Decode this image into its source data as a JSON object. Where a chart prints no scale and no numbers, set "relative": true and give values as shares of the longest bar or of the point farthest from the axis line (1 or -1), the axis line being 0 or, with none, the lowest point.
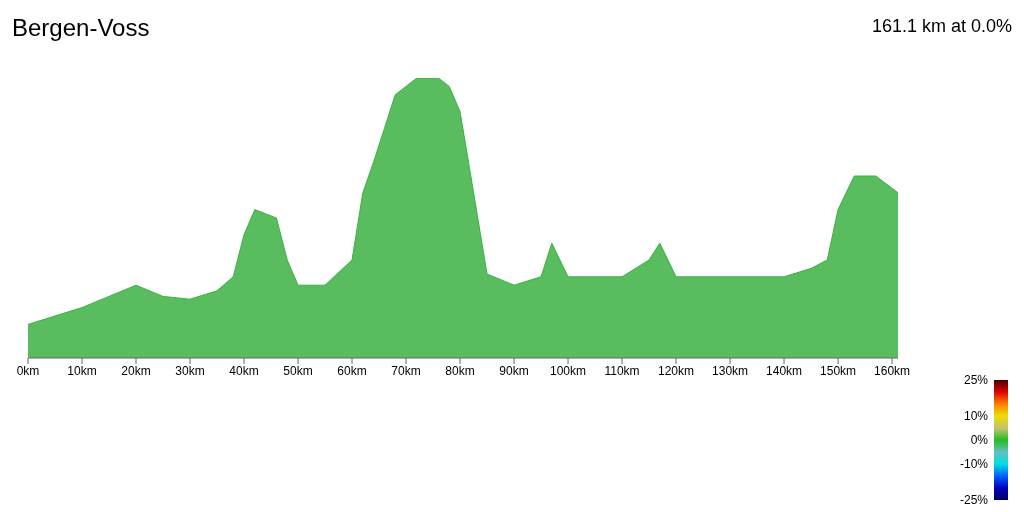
{
  "chart_data": {
    "type": "area",
    "title": "Bergen-Voss",
    "subtitle": "161.1 km at 0.0%",
    "relative": true,
    "x": [
      0,
      5,
      10,
      15,
      20,
      25,
      30,
      35,
      38,
      40,
      42,
      46,
      48,
      50,
      55,
      60,
      62,
      64,
      66,
      68,
      70,
      72,
      76,
      78,
      80,
      82,
      85,
      90,
      95,
      97,
      100,
      105,
      110,
      115,
      117,
      120,
      125,
      130,
      135,
      140,
      145,
      148,
      150,
      153,
      157,
      161.1
    ],
    "series": [
      {
        "color": "#3cb043",
        "values": [
          0.12,
          0.15,
          0.18,
          0.22,
          0.26,
          0.22,
          0.21,
          0.24,
          0.29,
          0.44,
          0.53,
          0.5,
          0.35,
          0.26,
          0.26,
          0.35,
          0.59,
          0.7,
          0.82,
          0.94,
          0.97,
          1,
          1,
          0.97,
          0.88,
          0.65,
          0.3,
          0.26,
          0.29,
          0.41,
          0.29,
          0.29,
          0.29,
          0.35,
          0.41,
          0.29,
          0.29,
          0.29,
          0.29,
          0.29,
          0.32,
          0.35,
          0.53,
          0.65,
          0.65,
          0.59
        ]
      }
    ],
    "xlim": [
      0,
      161.1
    ],
    "xticks": [
      {
        "value": 0,
        "label": "0km"
      },
      {
        "value": 10,
        "label": "10km"
      },
      {
        "value": 20,
        "label": "20km"
      },
      {
        "value": 30,
        "label": "30km"
      },
      {
        "value": 40,
        "label": "40km"
      },
      {
        "value": 50,
        "label": "50km"
      },
      {
        "value": 60,
        "label": "60km"
      },
      {
        "value": 70,
        "label": "70km"
      },
      {
        "value": 80,
        "label": "80km"
      },
      {
        "value": 90,
        "label": "90km"
      },
      {
        "value": 100,
        "label": "100km"
      },
      {
        "value": 110,
        "label": "110km"
      },
      {
        "value": 120,
        "label": "120km"
      },
      {
        "value": 130,
        "label": "130km"
      },
      {
        "value": 140,
        "label": "140km"
      },
      {
        "value": 150,
        "label": "150km"
      },
      {
        "value": 160,
        "label": "160km"
      }
    ],
    "clim": [
      -25,
      25
    ],
    "cticks": [
      {
        "value": 25,
        "label": "25%"
      },
      {
        "value": 10,
        "label": "10%"
      },
      {
        "value": 0,
        "label": "0%"
      },
      {
        "value": -10,
        "label": "-10%"
      },
      {
        "value": -25,
        "label": "-25%"
      }
    ],
    "grid": false,
    "legend": false
  }
}
